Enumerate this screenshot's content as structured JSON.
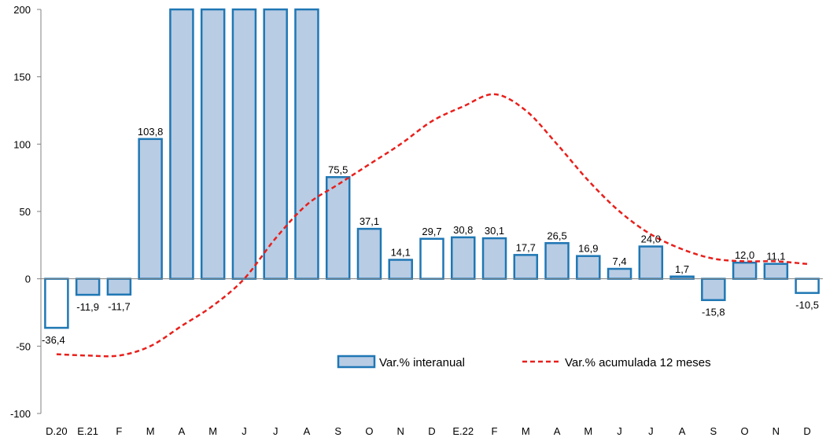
{
  "chart_data": {
    "type": "bar",
    "categories": [
      "D.20",
      "E.21",
      "F",
      "M",
      "A",
      "M",
      "J",
      "J",
      "A",
      "S",
      "O",
      "N",
      "D",
      "E.22",
      "F",
      "M",
      "A",
      "M",
      "J",
      "J",
      "A",
      "S",
      "O",
      "N",
      "D"
    ],
    "series": [
      {
        "name": "Var.% interanual",
        "type": "bar",
        "values": [
          -36.4,
          -11.9,
          -11.7,
          103.8,
          200,
          200,
          200,
          200,
          200,
          75.5,
          37.1,
          14.1,
          29.7,
          30.8,
          30.1,
          17.7,
          26.5,
          16.9,
          7.4,
          24.0,
          1.7,
          -15.8,
          12.0,
          11.1,
          -10.5
        ],
        "labels": [
          "-36,4",
          "-11,9",
          "-11,7",
          "103,8",
          "",
          "",
          "",
          "",
          "",
          "75,5",
          "37,1",
          "14,1",
          "29,7",
          "30,8",
          "30,1",
          "17,7",
          "26,5",
          "16,9",
          "7,4",
          "24,0",
          "1,7",
          "-15,8",
          "12,0",
          "11,1",
          "-10,5"
        ],
        "hollow": [
          true,
          false,
          false,
          false,
          false,
          false,
          false,
          false,
          false,
          false,
          false,
          false,
          true,
          false,
          false,
          false,
          false,
          false,
          false,
          false,
          false,
          false,
          false,
          false,
          true
        ]
      },
      {
        "name": "Var.% acumulada 12 meses",
        "type": "line",
        "style": "dashed",
        "values": [
          -56,
          -57,
          -57,
          -50,
          -35,
          -20,
          0,
          30,
          55,
          70,
          85,
          100,
          117,
          128,
          137,
          125,
          100,
          73,
          50,
          33,
          22,
          15,
          13,
          13,
          11
        ]
      }
    ],
    "yticks": [
      200,
      150,
      100,
      50,
      0,
      -50,
      -100
    ],
    "ylim": [
      -100,
      200
    ],
    "colors": {
      "bar_fill": "#b8cce4",
      "bar_stroke": "#1f77b4",
      "line": "#e8201c",
      "axis": "#808080"
    },
    "legend": {
      "items": [
        "Var.% interanual",
        "Var.% acumulada 12 meses"
      ],
      "placement": "inside-bottom-right"
    }
  }
}
